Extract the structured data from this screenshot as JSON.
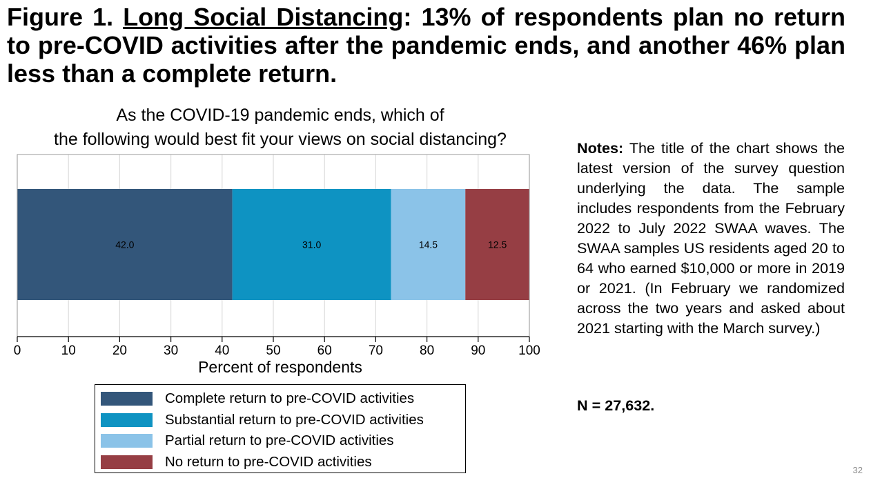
{
  "headline": {
    "prefix": "Figure 1. ",
    "underlined": "Long Social Distancing",
    "suffix": ": 13% of respondents plan no return to pre-COVID activities after the pandemic ends, and another 46% plan less than a complete return."
  },
  "chart_data": {
    "type": "bar",
    "orientation": "horizontal",
    "stacked": true,
    "title_lines": [
      "As the COVID-19 pandemic ends, which of",
      "the following would best fit your views on social distancing?"
    ],
    "xlabel": "Percent of respondents",
    "ylabel": "",
    "xlim": [
      0,
      100
    ],
    "x_ticks": [
      0,
      10,
      20,
      30,
      40,
      50,
      60,
      70,
      80,
      90,
      100
    ],
    "grid": true,
    "legend_position": "bottom",
    "series": [
      {
        "name": "Complete return to pre-COVID activities",
        "value": 42.0,
        "label": "42.0",
        "color": "#33567a"
      },
      {
        "name": "Substantial return to pre-COVID activities",
        "value": 31.0,
        "label": "31.0",
        "color": "#0e93c2"
      },
      {
        "name": "Partial return to pre-COVID activities",
        "value": 14.5,
        "label": "14.5",
        "color": "#8bc3e8"
      },
      {
        "name": "No return to pre-COVID activities",
        "value": 12.5,
        "label": "12.5",
        "color": "#963e44"
      }
    ]
  },
  "notes": {
    "label": "Notes:",
    "text": " The title of the chart shows the latest version of the survey question underlying the data. The sample includes respondents from the February 2022 to July 2022 SWAA waves. The SWAA samples US residents aged 20 to 64 who earned $10,000 or more in 2019 or 2021. (In February we randomized across the two years and asked about 2021 starting with the March survey.)"
  },
  "sample_size": "N = 27,632.",
  "page_number": "32"
}
